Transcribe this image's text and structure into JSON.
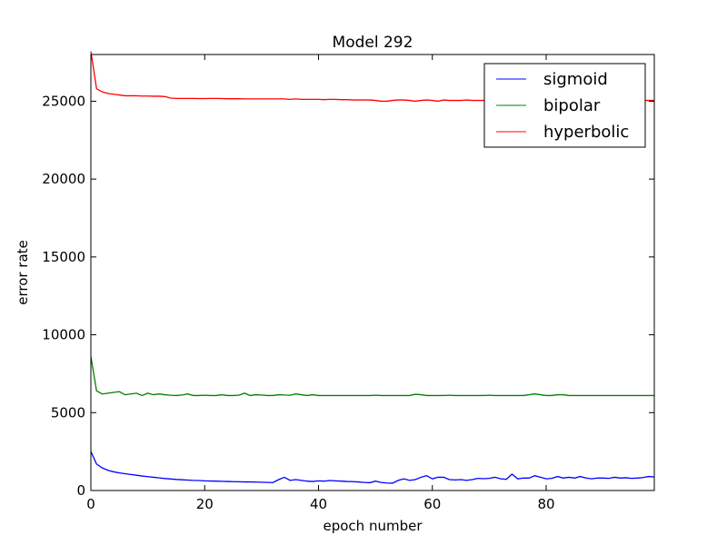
{
  "chart_data": {
    "type": "line",
    "title": "Model 292",
    "xlabel": "epoch number",
    "ylabel": "error rate",
    "xlim": [
      0,
      99
    ],
    "ylim": [
      0,
      28000
    ],
    "grid": false,
    "legend_position": "top-right",
    "xticks": [
      0,
      20,
      40,
      60,
      80
    ],
    "yticks": [
      0,
      5000,
      10000,
      15000,
      20000,
      25000
    ],
    "x": [
      0,
      1,
      2,
      3,
      4,
      5,
      6,
      7,
      8,
      9,
      10,
      11,
      12,
      13,
      14,
      15,
      16,
      17,
      18,
      19,
      20,
      21,
      22,
      23,
      24,
      25,
      26,
      27,
      28,
      29,
      30,
      31,
      32,
      33,
      34,
      35,
      36,
      37,
      38,
      39,
      40,
      41,
      42,
      43,
      44,
      45,
      46,
      47,
      48,
      49,
      50,
      51,
      52,
      53,
      54,
      55,
      56,
      57,
      58,
      59,
      60,
      61,
      62,
      63,
      64,
      65,
      66,
      67,
      68,
      69,
      70,
      71,
      72,
      73,
      74,
      75,
      76,
      77,
      78,
      79,
      80,
      81,
      82,
      83,
      84,
      85,
      86,
      87,
      88,
      89,
      90,
      91,
      92,
      93,
      94,
      95,
      96,
      97,
      98,
      99
    ],
    "series": [
      {
        "name": "sigmoid",
        "color": "#0000ff",
        "values": [
          2500,
          1700,
          1450,
          1300,
          1200,
          1130,
          1080,
          1030,
          980,
          930,
          890,
          850,
          810,
          770,
          740,
          710,
          690,
          670,
          650,
          640,
          620,
          610,
          600,
          590,
          580,
          570,
          560,
          550,
          550,
          540,
          530,
          520,
          510,
          700,
          850,
          650,
          700,
          650,
          600,
          580,
          620,
          600,
          640,
          620,
          600,
          580,
          570,
          550,
          520,
          500,
          600,
          520,
          480,
          470,
          650,
          750,
          650,
          700,
          850,
          950,
          750,
          850,
          850,
          700,
          680,
          700,
          650,
          700,
          780,
          760,
          780,
          850,
          750,
          720,
          1050,
          750,
          800,
          800,
          950,
          850,
          750,
          780,
          900,
          800,
          850,
          800,
          900,
          800,
          750,
          800,
          800,
          780,
          850,
          800,
          820,
          780,
          800,
          830,
          900,
          870
        ]
      },
      {
        "name": "bipolar",
        "color": "#008000",
        "values": [
          8600,
          6400,
          6200,
          6250,
          6300,
          6350,
          6150,
          6200,
          6250,
          6100,
          6250,
          6150,
          6200,
          6150,
          6120,
          6100,
          6130,
          6200,
          6100,
          6100,
          6120,
          6100,
          6100,
          6150,
          6100,
          6100,
          6120,
          6250,
          6100,
          6150,
          6130,
          6100,
          6100,
          6150,
          6130,
          6120,
          6200,
          6150,
          6100,
          6150,
          6100,
          6100,
          6100,
          6100,
          6100,
          6100,
          6100,
          6100,
          6100,
          6100,
          6120,
          6100,
          6100,
          6100,
          6100,
          6100,
          6100,
          6180,
          6150,
          6100,
          6100,
          6100,
          6100,
          6120,
          6100,
          6100,
          6100,
          6100,
          6100,
          6100,
          6120,
          6100,
          6100,
          6100,
          6100,
          6100,
          6100,
          6150,
          6200,
          6150,
          6100,
          6100,
          6150,
          6150,
          6100,
          6100,
          6100,
          6100,
          6100,
          6100,
          6100,
          6100,
          6100,
          6100,
          6100,
          6100,
          6100,
          6100,
          6100,
          6100
        ]
      },
      {
        "name": "hyperbolic",
        "color": "#ff0000",
        "values": [
          28200,
          25800,
          25600,
          25500,
          25450,
          25400,
          25350,
          25350,
          25350,
          25330,
          25330,
          25320,
          25320,
          25300,
          25200,
          25180,
          25180,
          25180,
          25180,
          25170,
          25170,
          25180,
          25180,
          25170,
          25160,
          25160,
          25160,
          25150,
          25150,
          25150,
          25150,
          25150,
          25150,
          25150,
          25150,
          25120,
          25150,
          25120,
          25120,
          25120,
          25120,
          25100,
          25120,
          25120,
          25100,
          25100,
          25080,
          25080,
          25080,
          25080,
          25050,
          25000,
          25000,
          25050,
          25080,
          25080,
          25050,
          25000,
          25050,
          25080,
          25050,
          25000,
          25080,
          25050,
          25050,
          25050,
          25080,
          25050,
          25050,
          25050,
          25080,
          25050,
          25050,
          25050,
          25050,
          25080,
          25050,
          25050,
          25050,
          25050,
          25050,
          25050,
          25050,
          25080,
          25050,
          25050,
          25050,
          25050,
          25080,
          25050,
          25050,
          25050,
          25080,
          25050,
          25050,
          25050,
          25050,
          25050,
          25050,
          25050
        ]
      }
    ]
  }
}
